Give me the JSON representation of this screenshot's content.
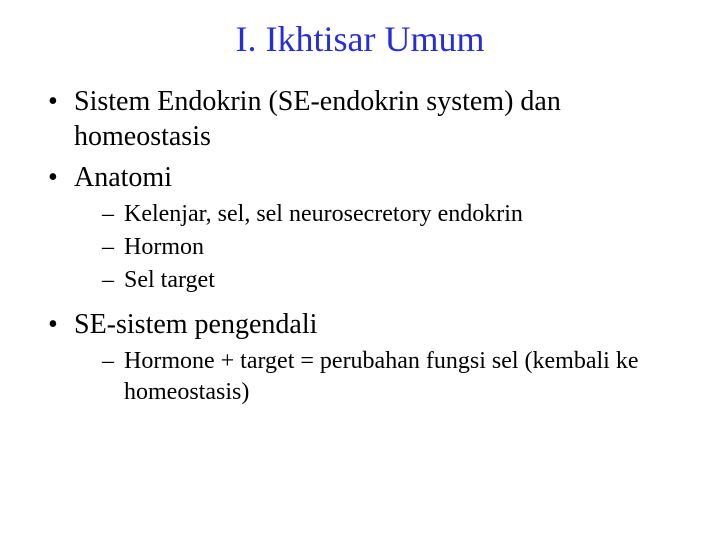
{
  "title_color": "#272ed9",
  "body_color": "#000000",
  "background_color": "#ffffff",
  "title": "I.  Ikhtisar Umum",
  "bullets": {
    "b1": "Sistem Endokrin (SE-endokrin system) dan homeostasis",
    "b2": "Anatomi",
    "b2_sub": {
      "s1": "Kelenjar, sel, sel neurosecretory  endokrin",
      "s2": "Hormon",
      "s3": "Sel target"
    },
    "b3": "SE-sistem pengendali",
    "b3_sub": {
      "s1": "Hormone + target = perubahan fungsi sel (kembali ke homeostasis)"
    }
  }
}
